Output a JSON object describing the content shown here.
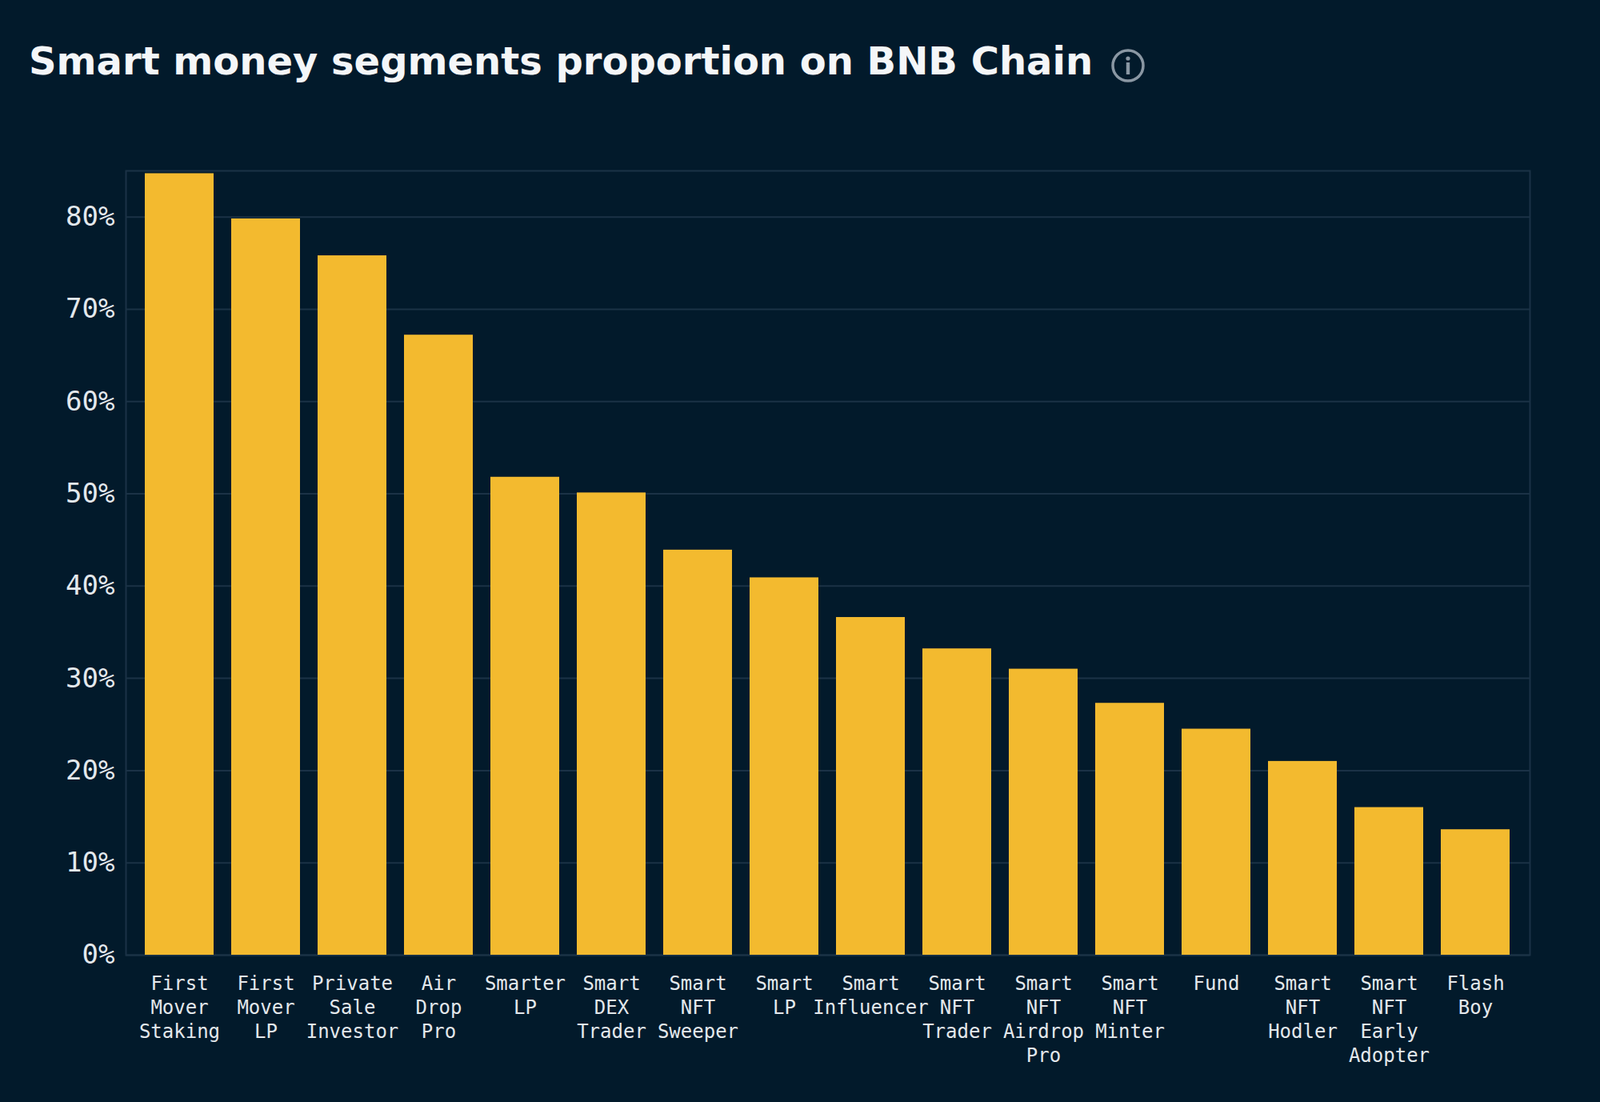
{
  "chart_data": {
    "type": "bar",
    "title": "Smart money segments proportion on BNB Chain",
    "categories": [
      "First Mover Staking",
      "First Mover LP",
      "Private Sale Investor",
      "Air Drop Pro",
      "Smarter LP",
      "Smart DEX Trader",
      "Smart NFT Sweeper",
      "Smart LP",
      "Smart Influencer",
      "Smart NFT Trader",
      "Smart NFT Airdrop Pro",
      "Smart NFT Minter",
      "Fund",
      "Smart NFT Hodler",
      "Smart NFT Early Adopter",
      "Flash Boy"
    ],
    "values": [
      84.7,
      79.8,
      75.8,
      67.2,
      51.8,
      50.1,
      43.9,
      40.9,
      36.6,
      33.2,
      31.0,
      27.3,
      24.5,
      21.0,
      16.0,
      13.6
    ],
    "color": "#f3ba2f",
    "ylim": [
      0,
      85
    ],
    "yticks": [
      {
        "value": 0,
        "label": "0%"
      },
      {
        "value": 10,
        "label": "10%"
      },
      {
        "value": 20,
        "label": "20%"
      },
      {
        "value": 30,
        "label": "30%"
      },
      {
        "value": 40,
        "label": "40%"
      },
      {
        "value": 50,
        "label": "50%"
      },
      {
        "value": 60,
        "label": "60%"
      },
      {
        "value": 70,
        "label": "70%"
      },
      {
        "value": 80,
        "label": "80%"
      }
    ],
    "grid": true
  }
}
